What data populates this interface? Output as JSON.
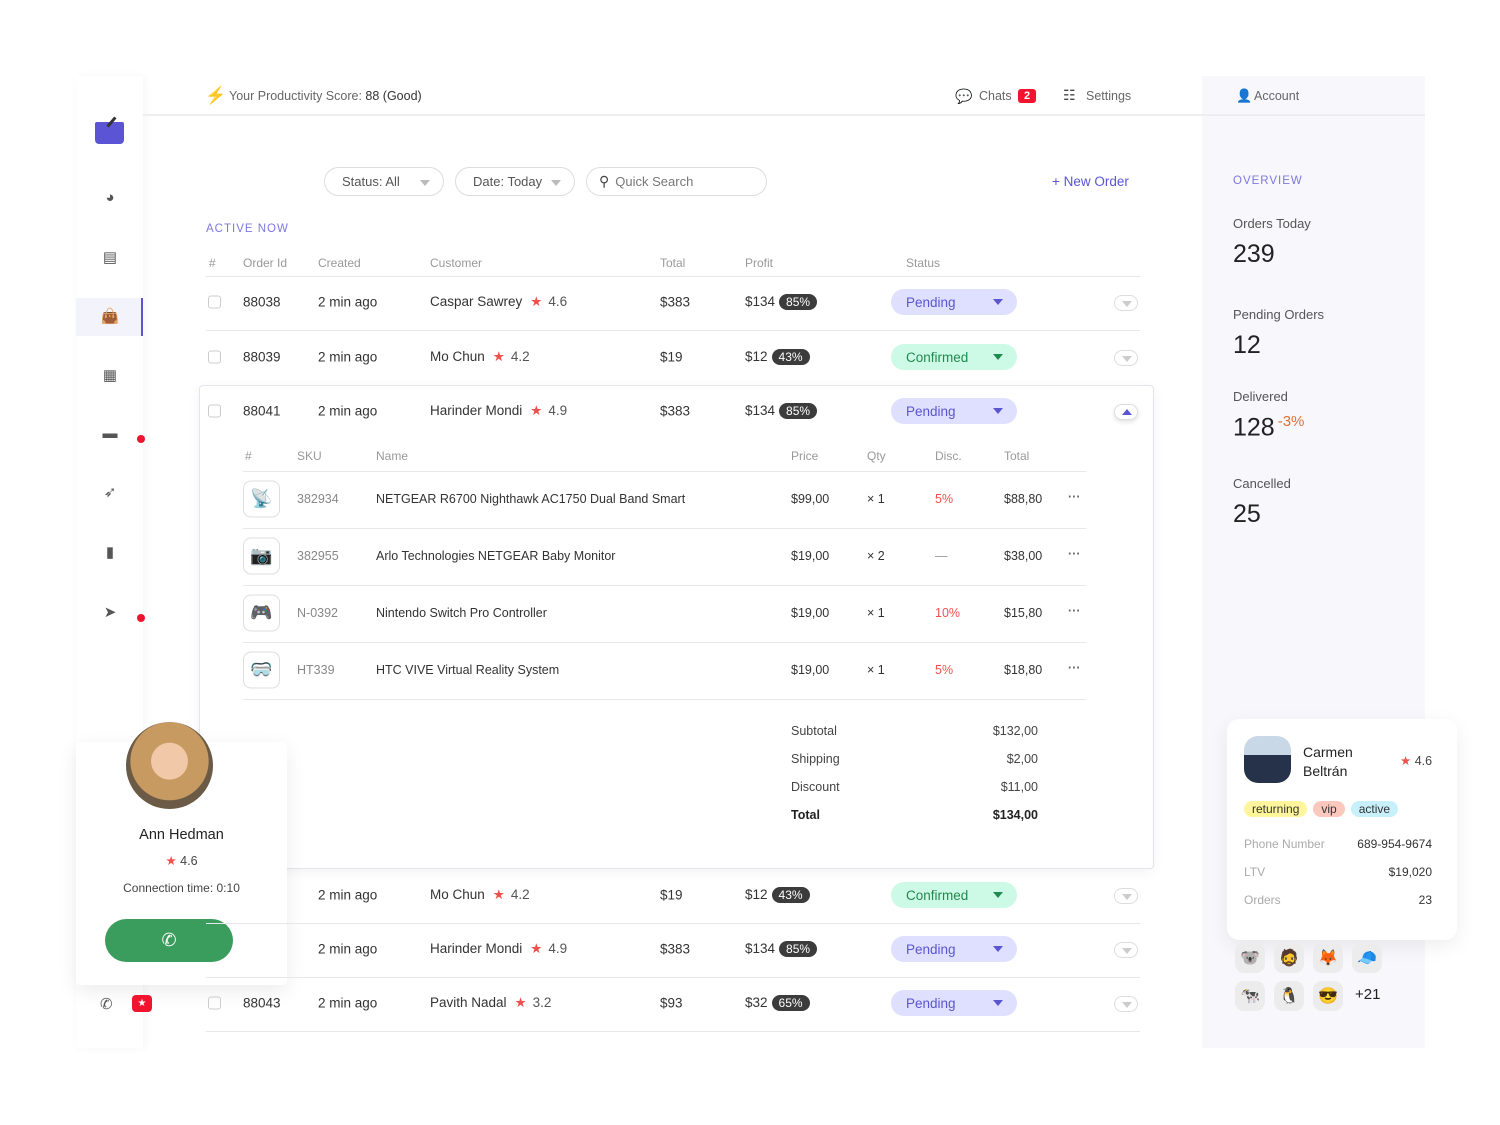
{
  "window": {
    "controls": [
      "close",
      "minimize",
      "maximize"
    ]
  },
  "sidebar": {
    "items": [
      {
        "icon": "gauge-icon",
        "glyph": "◕"
      },
      {
        "icon": "archive-icon",
        "glyph": "▤"
      },
      {
        "icon": "shopping-bag-icon",
        "glyph": "👜",
        "active": true
      },
      {
        "icon": "calendar-icon",
        "glyph": "▦"
      },
      {
        "icon": "wallet-icon",
        "glyph": "▬",
        "dot": true
      },
      {
        "icon": "rocket-icon",
        "glyph": "➶"
      },
      {
        "icon": "bookmark-icon",
        "glyph": "▮"
      },
      {
        "icon": "send-icon",
        "glyph": "➤",
        "dot": true
      }
    ]
  },
  "header": {
    "productivity_label": "Your Productivity Score:",
    "productivity_value": "88 (Good)",
    "chats": "Chats",
    "chats_count": "2",
    "settings": "Settings",
    "account": "Account"
  },
  "filters": {
    "status": "Status: All",
    "date": "Date: Today",
    "search_placeholder": "Quick Search",
    "new_order": "+ New Order"
  },
  "section_title": "ACTIVE NOW",
  "columns": [
    "#",
    "Order Id",
    "Created",
    "Customer",
    "Total",
    "Profit",
    "Status"
  ],
  "orders": [
    {
      "id": "88038",
      "created": "2 min ago",
      "customer": "Caspar Sawrey",
      "rating": "4.6",
      "total": "$383",
      "profit": "$134",
      "margin": "85%",
      "status": "Pending"
    },
    {
      "id": "88039",
      "created": "2 min ago",
      "customer": "Mo Chun",
      "rating": "4.2",
      "total": "$19",
      "profit": "$12",
      "margin": "43%",
      "status": "Confirmed"
    },
    {
      "id": "88041",
      "created": "2 min ago",
      "customer": "Harinder Mondi",
      "rating": "4.9",
      "total": "$383",
      "profit": "$134",
      "margin": "85%",
      "status": "Pending",
      "expanded": true
    },
    {
      "id": "",
      "created": "2 min ago",
      "customer": "Mo Chun",
      "rating": "4.2",
      "total": "$19",
      "profit": "$12",
      "margin": "43%",
      "status": "Confirmed"
    },
    {
      "id": "",
      "created": "2 min ago",
      "customer": "Harinder Mondi",
      "rating": "4.9",
      "total": "$383",
      "profit": "$134",
      "margin": "85%",
      "status": "Pending"
    },
    {
      "id": "88043",
      "created": "2 min ago",
      "customer": "Pavith Nadal",
      "rating": "3.2",
      "total": "$93",
      "profit": "$32",
      "margin": "65%",
      "status": "Pending"
    }
  ],
  "details": {
    "columns": [
      "#",
      "SKU",
      "Name",
      "Price",
      "Qty",
      "Disc.",
      "Total"
    ],
    "items": [
      {
        "sku": "382934",
        "name": "NETGEAR R6700 Nighthawk AC1750 Dual Band Smart",
        "price": "$99,00",
        "qty": "× 1",
        "disc": "5%",
        "total": "$88,80",
        "thumb": "router"
      },
      {
        "sku": "382955",
        "name": "Arlo Technologies NETGEAR Baby Monitor",
        "price": "$19,00",
        "qty": "× 2",
        "disc": "—",
        "total": "$38,00",
        "thumb": "camera"
      },
      {
        "sku": "N-0392",
        "name": "Nintendo Switch Pro Controller",
        "price": "$19,00",
        "qty": "× 1",
        "disc": "10%",
        "total": "$15,80",
        "thumb": "controller"
      },
      {
        "sku": "HT339",
        "name": "HTC VIVE Virtual Reality System",
        "price": "$19,00",
        "qty": "× 1",
        "disc": "5%",
        "total": "$18,80",
        "thumb": "vr-headset"
      }
    ],
    "summary": [
      {
        "label": "Subtotal",
        "value": "$132,00"
      },
      {
        "label": "Shipping",
        "value": "$2,00"
      },
      {
        "label": "Discount",
        "value": "$11,00"
      },
      {
        "label": "Total",
        "value": "$134,00"
      }
    ]
  },
  "overview": {
    "title": "OVERVIEW",
    "stats": [
      {
        "label": "Orders Today",
        "value": "239"
      },
      {
        "label": "Pending Orders",
        "value": "12"
      },
      {
        "label": "Delivered",
        "value": "128",
        "delta": "-3%"
      },
      {
        "label": "Cancelled",
        "value": "25"
      }
    ]
  },
  "call": {
    "name": "Ann Hedman",
    "rating": "4.6",
    "connection": "Connection time: 0:10"
  },
  "customer": {
    "name_line1": "Carmen",
    "name_line2": "Beltrán",
    "rating": "4.6",
    "tags": [
      "returning",
      "vip",
      "active"
    ],
    "phone_label": "Phone Number",
    "phone": "689-954-9674",
    "ltv_label": "LTV",
    "ltv": "$19,020",
    "orders_label": "Orders",
    "orders": "23"
  },
  "avatars_more": "+21",
  "colors": {
    "accent": "#5b55d6",
    "pending_bg": "#dfe0ff",
    "confirmed_bg": "#cdfae6",
    "danger": "#f0142f",
    "call_green": "#3a9d5d"
  }
}
